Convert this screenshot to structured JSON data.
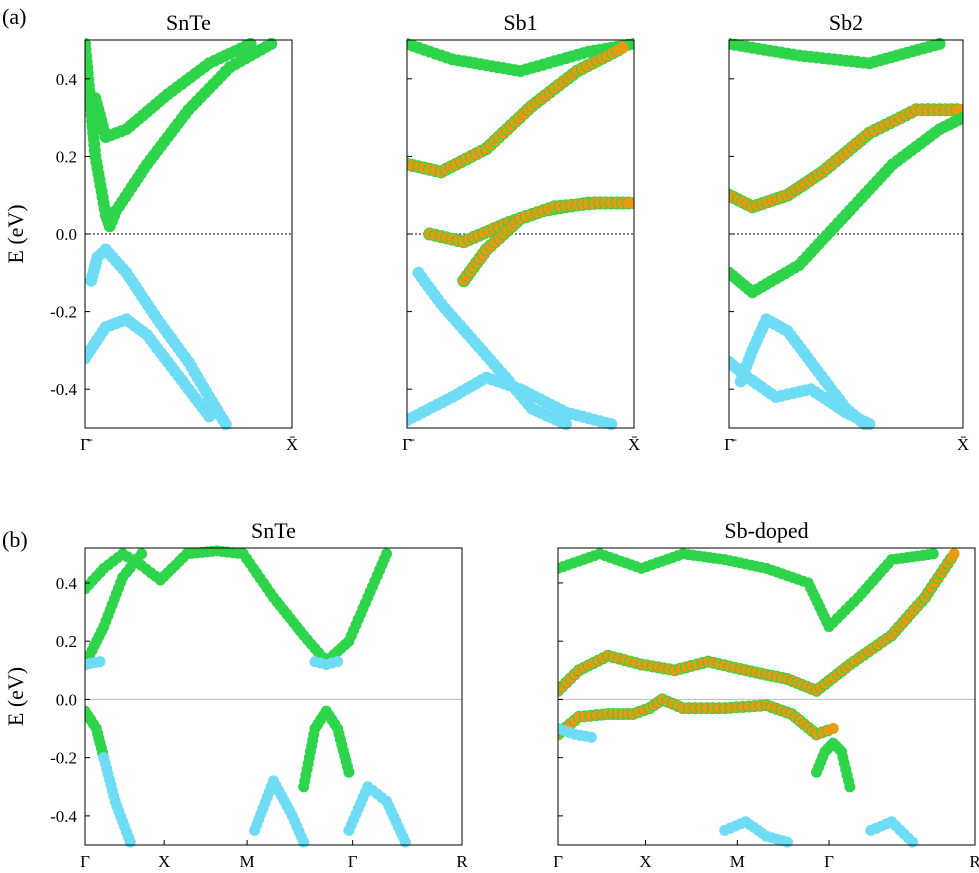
{
  "figure": {
    "label_a": "(a)",
    "label_b": "(b)"
  },
  "legend_colors": {
    "cyan": "#6fdcf5",
    "green": "#2ed44a",
    "orange": "#e89a10",
    "line": "#7a3d7a"
  },
  "chart_data": [
    {
      "type": "scatter",
      "panel": "a",
      "title": "SnTe",
      "ylabel": "E (eV)",
      "ylim": [
        -0.5,
        0.5
      ],
      "yticks": [
        "0.4",
        "0.2",
        "0.0",
        "-0.2",
        "-0.4"
      ],
      "xticks": [
        "Γ̄",
        "X̄"
      ],
      "fermi_level": 0.0,
      "series": [
        {
          "color": "green",
          "points": [
            [
              0.0,
              0.49
            ],
            [
              0.05,
              0.2
            ],
            [
              0.1,
              0.05
            ],
            [
              0.12,
              0.02
            ],
            [
              0.15,
              0.06
            ],
            [
              0.3,
              0.18
            ],
            [
              0.5,
              0.32
            ],
            [
              0.7,
              0.43
            ],
            [
              0.9,
              0.49
            ]
          ]
        },
        {
          "color": "green",
          "points": [
            [
              0.05,
              0.35
            ],
            [
              0.1,
              0.25
            ],
            [
              0.2,
              0.27
            ],
            [
              0.4,
              0.36
            ],
            [
              0.6,
              0.44
            ],
            [
              0.8,
              0.49
            ]
          ]
        },
        {
          "color": "cyan",
          "points": [
            [
              0.03,
              -0.12
            ],
            [
              0.06,
              -0.06
            ],
            [
              0.1,
              -0.04
            ],
            [
              0.2,
              -0.1
            ],
            [
              0.35,
              -0.22
            ],
            [
              0.5,
              -0.33
            ],
            [
              0.6,
              -0.42
            ],
            [
              0.68,
              -0.49
            ]
          ]
        },
        {
          "color": "cyan",
          "points": [
            [
              0.0,
              -0.32
            ],
            [
              0.1,
              -0.24
            ],
            [
              0.2,
              -0.22
            ],
            [
              0.3,
              -0.26
            ],
            [
              0.4,
              -0.33
            ],
            [
              0.5,
              -0.4
            ],
            [
              0.6,
              -0.47
            ]
          ]
        }
      ]
    },
    {
      "type": "scatter",
      "panel": "a",
      "title": "Sb1",
      "ylim": [
        -0.5,
        0.5
      ],
      "xticks": [
        "Γ̄",
        "X̄"
      ],
      "fermi_level": 0.0,
      "series": [
        {
          "color": "green",
          "points": [
            [
              0.0,
              0.49
            ],
            [
              0.2,
              0.45
            ],
            [
              0.5,
              0.42
            ],
            [
              0.8,
              0.47
            ],
            [
              1.0,
              0.49
            ]
          ]
        },
        {
          "color": "orange",
          "points": [
            [
              0.0,
              0.18
            ],
            [
              0.15,
              0.16
            ],
            [
              0.35,
              0.22
            ],
            [
              0.55,
              0.33
            ],
            [
              0.75,
              0.42
            ],
            [
              0.95,
              0.48
            ]
          ]
        },
        {
          "color": "orange",
          "points": [
            [
              0.1,
              0.0
            ],
            [
              0.25,
              -0.02
            ],
            [
              0.45,
              0.03
            ],
            [
              0.6,
              0.06
            ],
            [
              0.8,
              0.08
            ],
            [
              1.0,
              0.08
            ]
          ]
        },
        {
          "color": "orange",
          "points": [
            [
              0.25,
              -0.12
            ],
            [
              0.35,
              -0.04
            ],
            [
              0.5,
              0.04
            ],
            [
              0.65,
              0.07
            ],
            [
              0.85,
              0.08
            ],
            [
              1.0,
              0.08
            ]
          ]
        },
        {
          "color": "cyan",
          "points": [
            [
              0.05,
              -0.1
            ],
            [
              0.15,
              -0.18
            ],
            [
              0.3,
              -0.28
            ],
            [
              0.45,
              -0.38
            ],
            [
              0.55,
              -0.45
            ],
            [
              0.7,
              -0.49
            ]
          ]
        },
        {
          "color": "cyan",
          "points": [
            [
              0.0,
              -0.48
            ],
            [
              0.2,
              -0.42
            ],
            [
              0.35,
              -0.37
            ],
            [
              0.5,
              -0.4
            ],
            [
              0.7,
              -0.46
            ],
            [
              0.9,
              -0.49
            ]
          ]
        }
      ]
    },
    {
      "type": "scatter",
      "panel": "a",
      "title": "Sb2",
      "ylim": [
        -0.5,
        0.5
      ],
      "xticks": [
        "Γ̄",
        "X̄"
      ],
      "fermi_level": 0.0,
      "series": [
        {
          "color": "green",
          "points": [
            [
              0.0,
              0.49
            ],
            [
              0.3,
              0.46
            ],
            [
              0.6,
              0.44
            ],
            [
              0.9,
              0.49
            ]
          ]
        },
        {
          "color": "orange",
          "points": [
            [
              0.0,
              0.1
            ],
            [
              0.1,
              0.07
            ],
            [
              0.25,
              0.1
            ],
            [
              0.4,
              0.16
            ],
            [
              0.6,
              0.26
            ],
            [
              0.8,
              0.32
            ],
            [
              1.0,
              0.32
            ]
          ]
        },
        {
          "color": "green",
          "points": [
            [
              0.0,
              -0.1
            ],
            [
              0.1,
              -0.15
            ],
            [
              0.3,
              -0.08
            ],
            [
              0.5,
              0.05
            ],
            [
              0.7,
              0.18
            ],
            [
              0.9,
              0.27
            ],
            [
              1.0,
              0.3
            ]
          ]
        },
        {
          "color": "cyan",
          "points": [
            [
              0.05,
              -0.38
            ],
            [
              0.1,
              -0.3
            ],
            [
              0.16,
              -0.22
            ],
            [
              0.25,
              -0.25
            ],
            [
              0.35,
              -0.33
            ],
            [
              0.5,
              -0.45
            ],
            [
              0.58,
              -0.49
            ]
          ]
        },
        {
          "color": "cyan",
          "points": [
            [
              0.0,
              -0.33
            ],
            [
              0.08,
              -0.37
            ],
            [
              0.2,
              -0.42
            ],
            [
              0.35,
              -0.4
            ],
            [
              0.5,
              -0.46
            ],
            [
              0.6,
              -0.49
            ]
          ]
        }
      ]
    },
    {
      "type": "scatter",
      "panel": "b",
      "title": "SnTe",
      "ylabel": "E (eV)",
      "ylim": [
        -0.5,
        0.52
      ],
      "yticks": [
        "0.4",
        "0.2",
        "0.0",
        "-0.2",
        "-0.4"
      ],
      "xticks": [
        "Γ",
        "X",
        "M",
        "Γ",
        "R"
      ],
      "fermi_level": 0.0,
      "series": [
        {
          "color": "green",
          "points": [
            [
              0.0,
              0.38
            ],
            [
              0.05,
              0.45
            ],
            [
              0.1,
              0.5
            ],
            [
              0.15,
              0.46
            ],
            [
              0.2,
              0.41
            ],
            [
              0.27,
              0.5
            ],
            [
              0.35,
              0.51
            ],
            [
              0.42,
              0.5
            ],
            [
              0.5,
              0.35
            ],
            [
              0.58,
              0.22
            ],
            [
              0.64,
              0.13
            ],
            [
              0.7,
              0.2
            ],
            [
              0.75,
              0.35
            ],
            [
              0.8,
              0.5
            ]
          ]
        },
        {
          "color": "green",
          "points": [
            [
              0.0,
              0.12
            ],
            [
              0.05,
              0.25
            ],
            [
              0.1,
              0.42
            ],
            [
              0.15,
              0.5
            ]
          ]
        },
        {
          "color": "cyan",
          "points": [
            [
              0.0,
              0.12
            ],
            [
              0.04,
              0.13
            ]
          ]
        },
        {
          "color": "cyan",
          "points": [
            [
              0.61,
              0.13
            ],
            [
              0.64,
              0.12
            ],
            [
              0.67,
              0.13
            ]
          ]
        },
        {
          "color": "green",
          "points": [
            [
              0.0,
              -0.04
            ],
            [
              0.03,
              -0.1
            ],
            [
              0.05,
              -0.2
            ]
          ]
        },
        {
          "color": "cyan",
          "points": [
            [
              0.05,
              -0.2
            ],
            [
              0.08,
              -0.35
            ],
            [
              0.12,
              -0.49
            ]
          ]
        },
        {
          "color": "green",
          "points": [
            [
              0.58,
              -0.3
            ],
            [
              0.61,
              -0.1
            ],
            [
              0.64,
              -0.04
            ],
            [
              0.67,
              -0.1
            ],
            [
              0.7,
              -0.25
            ]
          ]
        },
        {
          "color": "cyan",
          "points": [
            [
              0.45,
              -0.45
            ],
            [
              0.5,
              -0.28
            ],
            [
              0.55,
              -0.4
            ],
            [
              0.58,
              -0.49
            ]
          ]
        },
        {
          "color": "cyan",
          "points": [
            [
              0.7,
              -0.45
            ],
            [
              0.75,
              -0.3
            ],
            [
              0.8,
              -0.35
            ],
            [
              0.85,
              -0.49
            ]
          ]
        }
      ]
    },
    {
      "type": "scatter",
      "panel": "b",
      "title": "Sb-doped",
      "ylim": [
        -0.5,
        0.52
      ],
      "xticks": [
        "Γ",
        "X",
        "M",
        "Γ",
        "R"
      ],
      "fermi_level": 0.0,
      "series": [
        {
          "color": "green",
          "points": [
            [
              0.0,
              0.45
            ],
            [
              0.1,
              0.5
            ],
            [
              0.2,
              0.45
            ],
            [
              0.3,
              0.5
            ],
            [
              0.4,
              0.48
            ],
            [
              0.5,
              0.45
            ],
            [
              0.6,
              0.4
            ],
            [
              0.65,
              0.25
            ],
            [
              0.72,
              0.35
            ],
            [
              0.8,
              0.48
            ],
            [
              0.9,
              0.5
            ]
          ]
        },
        {
          "color": "orange",
          "points": [
            [
              0.0,
              0.03
            ],
            [
              0.05,
              0.1
            ],
            [
              0.12,
              0.15
            ],
            [
              0.2,
              0.12
            ],
            [
              0.28,
              0.1
            ],
            [
              0.36,
              0.13
            ],
            [
              0.45,
              0.1
            ],
            [
              0.55,
              0.07
            ],
            [
              0.62,
              0.03
            ],
            [
              0.7,
              0.12
            ],
            [
              0.8,
              0.22
            ],
            [
              0.88,
              0.35
            ],
            [
              0.95,
              0.5
            ]
          ]
        },
        {
          "color": "orange",
          "points": [
            [
              0.0,
              -0.12
            ],
            [
              0.05,
              -0.06
            ],
            [
              0.12,
              -0.05
            ],
            [
              0.18,
              -0.05
            ],
            [
              0.22,
              -0.03
            ],
            [
              0.25,
              0.0
            ],
            [
              0.3,
              -0.03
            ],
            [
              0.4,
              -0.03
            ],
            [
              0.5,
              -0.02
            ],
            [
              0.56,
              -0.05
            ],
            [
              0.62,
              -0.12
            ],
            [
              0.66,
              -0.1
            ]
          ]
        },
        {
          "color": "cyan",
          "points": [
            [
              0.0,
              -0.1
            ],
            [
              0.04,
              -0.12
            ],
            [
              0.08,
              -0.13
            ]
          ]
        },
        {
          "color": "green",
          "points": [
            [
              0.62,
              -0.25
            ],
            [
              0.64,
              -0.18
            ],
            [
              0.66,
              -0.15
            ],
            [
              0.68,
              -0.18
            ],
            [
              0.7,
              -0.3
            ]
          ]
        },
        {
          "color": "cyan",
          "points": [
            [
              0.4,
              -0.45
            ],
            [
              0.45,
              -0.42
            ],
            [
              0.5,
              -0.47
            ],
            [
              0.55,
              -0.49
            ]
          ]
        },
        {
          "color": "cyan",
          "points": [
            [
              0.75,
              -0.45
            ],
            [
              0.8,
              -0.42
            ],
            [
              0.85,
              -0.49
            ]
          ]
        }
      ]
    }
  ]
}
